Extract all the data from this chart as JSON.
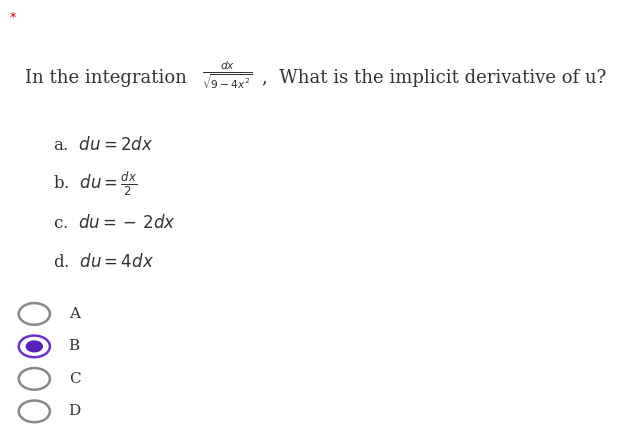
{
  "background_color": "#ffffff",
  "star_text": "*",
  "star_color": "#cc0000",
  "text_color": "#333333",
  "radio_color_selected_edge": "#6633cc",
  "radio_color_selected_fill": "#5522bb",
  "radio_color_unselected": "#888888",
  "question_line": "In the integration",
  "question_suffix": ",  What is the implicit derivative of u?",
  "choices_raw": [
    "a.  $\\mathit{du} = 2\\mathit{dx}$",
    "b.  $\\mathit{du} = \\frac{\\mathit{dx}}{2}$",
    "c.  $\\mathit{du} =-\\, 2\\mathit{dx}$",
    "d.  $\\mathit{du} = 4\\mathit{dx}$"
  ],
  "radio_labels": [
    "A",
    "B",
    "C",
    "D"
  ],
  "radio_selected": 1
}
